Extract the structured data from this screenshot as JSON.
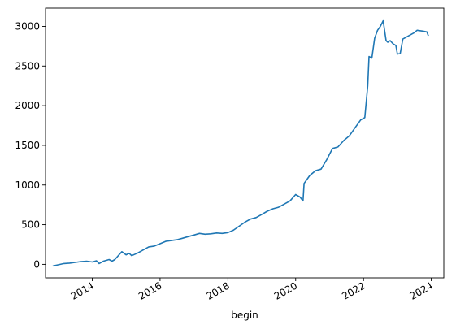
{
  "chart_data": {
    "type": "line",
    "title": "",
    "xlabel": "begin",
    "ylabel": "",
    "x_ticks": [
      "2014",
      "2016",
      "2018",
      "2020",
      "2022",
      "2024"
    ],
    "y_ticks": [
      "0",
      "500",
      "1000",
      "1500",
      "2000",
      "2500",
      "3000"
    ],
    "xlim": [
      "2012-08-15",
      "2024-05-15"
    ],
    "ylim": [
      -170,
      3230
    ],
    "grid": false,
    "legend": "none",
    "colors": {
      "line": "#1f77b4"
    },
    "series": [
      {
        "x": [
          "2012-11-01",
          "2013-01-01",
          "2013-03-01",
          "2013-05-01",
          "2013-07-01",
          "2013-09-01",
          "2013-11-01",
          "2014-01-01",
          "2014-02-15",
          "2014-03-15",
          "2014-04-01",
          "2014-05-01",
          "2014-07-01",
          "2014-08-01",
          "2014-09-01",
          "2014-10-01",
          "2014-11-15",
          "2015-01-01",
          "2015-02-01",
          "2015-03-01",
          "2015-05-01",
          "2015-07-01",
          "2015-09-01",
          "2015-11-01",
          "2016-01-01",
          "2016-03-01",
          "2016-05-01",
          "2016-07-01",
          "2016-09-01",
          "2016-11-01",
          "2017-01-01",
          "2017-03-01",
          "2017-05-01",
          "2017-07-01",
          "2017-09-01",
          "2017-11-01",
          "2018-01-01",
          "2018-03-01",
          "2018-05-01",
          "2018-07-01",
          "2018-09-01",
          "2018-11-01",
          "2019-01-01",
          "2019-03-01",
          "2019-05-01",
          "2019-07-01",
          "2019-09-01",
          "2019-11-01",
          "2020-01-01",
          "2020-02-15",
          "2020-03-20",
          "2020-04-01",
          "2020-06-01",
          "2020-08-01",
          "2020-10-01",
          "2020-12-01",
          "2021-02-01",
          "2021-04-01",
          "2021-06-01",
          "2021-08-01",
          "2021-10-01",
          "2021-12-01",
          "2022-01-15",
          "2022-02-15",
          "2022-03-01",
          "2022-04-01",
          "2022-05-01",
          "2022-06-01",
          "2022-07-01",
          "2022-08-01",
          "2022-09-01",
          "2022-09-20",
          "2022-10-15",
          "2022-11-15",
          "2022-12-15",
          "2023-01-01",
          "2023-02-01",
          "2023-03-01",
          "2023-05-01",
          "2023-07-01",
          "2023-08-01",
          "2023-10-01",
          "2023-11-15",
          "2023-12-01"
        ],
        "y": [
          -20,
          -5,
          10,
          15,
          25,
          35,
          40,
          30,
          45,
          10,
          20,
          40,
          60,
          40,
          60,
          100,
          160,
          120,
          140,
          110,
          140,
          180,
          220,
          230,
          260,
          290,
          300,
          310,
          330,
          350,
          370,
          390,
          380,
          385,
          395,
          390,
          400,
          430,
          480,
          530,
          570,
          590,
          630,
          670,
          700,
          720,
          760,
          800,
          880,
          850,
          800,
          1020,
          1120,
          1180,
          1200,
          1320,
          1460,
          1480,
          1560,
          1620,
          1720,
          1820,
          1850,
          2250,
          2620,
          2600,
          2850,
          2950,
          3000,
          3070,
          2820,
          2800,
          2820,
          2780,
          2760,
          2650,
          2660,
          2840,
          2880,
          2920,
          2950,
          2940,
          2930,
          2880
        ]
      }
    ]
  }
}
